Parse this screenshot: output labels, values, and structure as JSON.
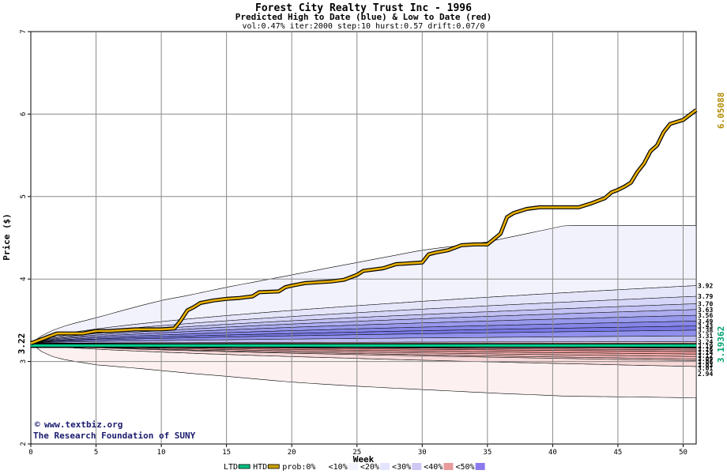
{
  "chart_data": {
    "type": "area",
    "title": "Forest City Realty Trust Inc - 1996",
    "subtitle": "Predicted High to Date (blue) &  Low to Date (red)",
    "params": "vol:0.47% iter:2000 step:10 hurst:0.57 drift:0.07/0",
    "xlabel": "Week",
    "ylabel": "Price ($)",
    "xlim": [
      0,
      51
    ],
    "ylim": [
      2,
      7
    ],
    "xticks": [
      0,
      5,
      10,
      15,
      20,
      25,
      30,
      35,
      40,
      45,
      50
    ],
    "yticks": [
      2,
      3,
      4,
      5,
      6,
      7
    ],
    "grid": true,
    "start_price": 3.22,
    "start_label": "3.22",
    "htd_end_label": "6.05088",
    "ltd_end_label": "3.19362",
    "credit_lines": [
      "www.textbiz.org",
      "The Research Foundation of SUNY"
    ],
    "right_labels_high": [
      "3.92",
      "3.79",
      "3.70",
      "3.63",
      "3.56",
      "3.49",
      "3.43",
      "3.38",
      "3.31"
    ],
    "right_labels_low": [
      "3.24",
      "3.19",
      "3.16",
      "3.14",
      "3.12",
      "3.09",
      "3.06",
      "3.03",
      "3.01",
      "2.94"
    ],
    "outer_envelope": {
      "x": [
        0,
        1,
        2,
        3,
        5,
        8,
        10,
        12,
        15,
        20,
        25,
        30,
        35,
        41,
        51
      ],
      "upper": [
        3.22,
        3.33,
        3.4,
        3.45,
        3.53,
        3.66,
        3.74,
        3.8,
        3.9,
        4.05,
        4.2,
        4.35,
        4.45,
        4.65,
        4.65
      ],
      "lower": [
        3.22,
        3.1,
        3.04,
        3.01,
        2.96,
        2.92,
        2.89,
        2.86,
        2.82,
        2.75,
        2.7,
        2.66,
        2.62,
        2.58,
        2.56
      ]
    },
    "htd_series": {
      "name": "HTD",
      "x": [
        0,
        1,
        1.5,
        2,
        4,
        5,
        6,
        8,
        10,
        11,
        11.5,
        12,
        12.5,
        13,
        14,
        15,
        16,
        17,
        17.5,
        19,
        19.5,
        20,
        21,
        23,
        24,
        25,
        25.5,
        27,
        28,
        30,
        30.5,
        31,
        32,
        33,
        34,
        35,
        36,
        36.5,
        37,
        38,
        39,
        40,
        41,
        42,
        43,
        44,
        44.5,
        45,
        45.5,
        46,
        46.5,
        47,
        47.5,
        48,
        48.5,
        49,
        50,
        51
      ],
      "y": [
        3.22,
        3.28,
        3.31,
        3.34,
        3.34,
        3.37,
        3.37,
        3.39,
        3.39,
        3.4,
        3.5,
        3.62,
        3.66,
        3.71,
        3.74,
        3.76,
        3.77,
        3.79,
        3.84,
        3.85,
        3.9,
        3.92,
        3.95,
        3.97,
        3.99,
        4.05,
        4.1,
        4.13,
        4.18,
        4.2,
        4.3,
        4.32,
        4.35,
        4.41,
        4.42,
        4.42,
        4.55,
        4.75,
        4.8,
        4.85,
        4.87,
        4.87,
        4.87,
        4.87,
        4.92,
        4.98,
        5.05,
        5.08,
        5.12,
        5.17,
        5.3,
        5.4,
        5.55,
        5.62,
        5.78,
        5.88,
        5.93,
        6.05
      ]
    },
    "ltd_series": {
      "name": "LTD",
      "value": 3.19362
    },
    "legend": [
      {
        "label": "LTD",
        "color": "#00c080",
        "kind": "line"
      },
      {
        "label": "HTD",
        "color": "#c8a000",
        "kind": "line"
      },
      {
        "label": "prob:0%",
        "color": "#ffffff",
        "kind": "box"
      },
      {
        "label": "<10%",
        "color": "#f4f4ff",
        "kind": "box"
      },
      {
        "label": "<20%",
        "color": "#e4e4ff",
        "kind": "box"
      },
      {
        "label": "<30%",
        "color": "#d0c8f4",
        "kind": "box"
      },
      {
        "label": "<40%",
        "color": "#e89a9a",
        "kind": "box"
      },
      {
        "label": "<50%",
        "color": "#8a7aee",
        "kind": "box"
      }
    ],
    "legend_text": [
      "LTD",
      "HTD",
      "prob:0%",
      "<10%",
      "<20%",
      "<30%",
      "<40%",
      "<50%"
    ]
  }
}
